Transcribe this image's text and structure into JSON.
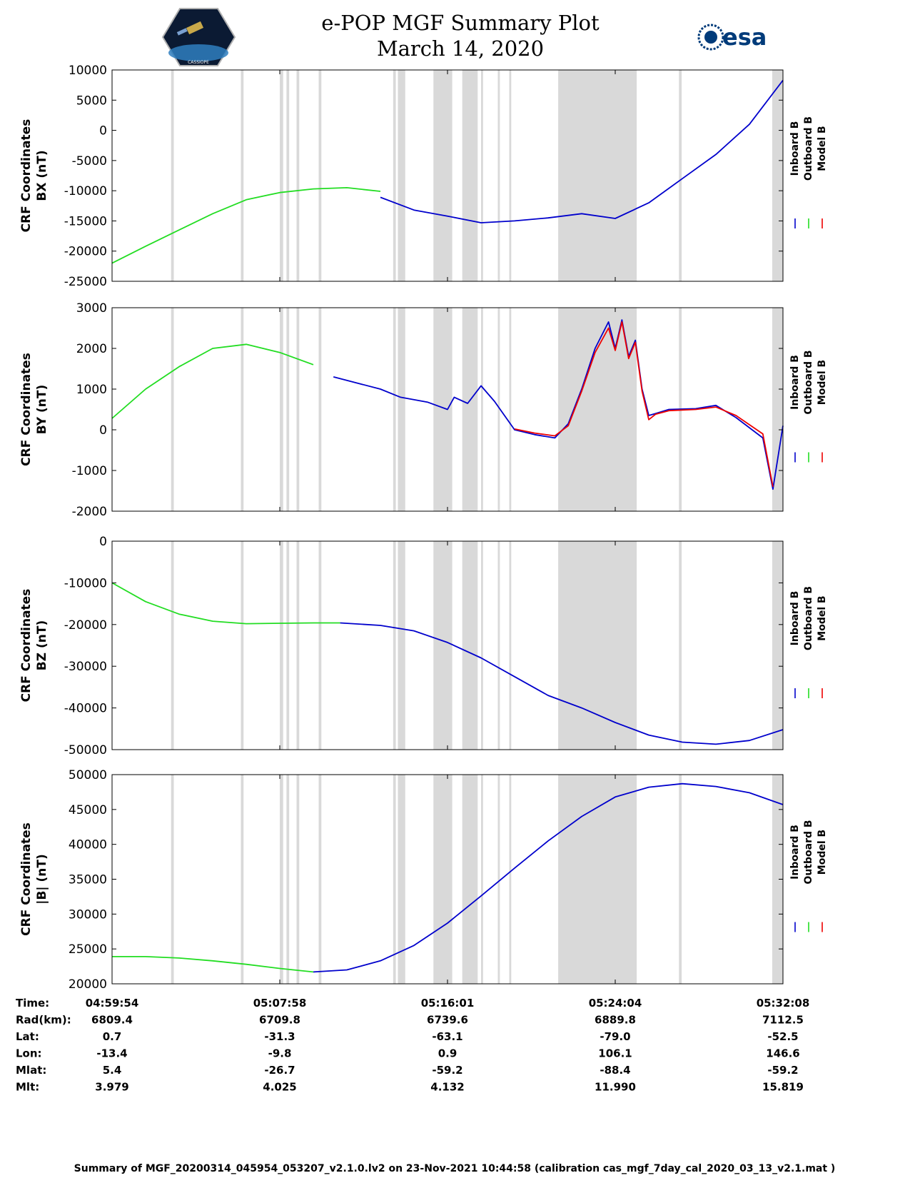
{
  "header": {
    "title_line1": "e-POP MGF Summary Plot",
    "title_line2": "March 14, 2020",
    "logo_left_text": "CASSIOPE",
    "logo_right_text": "esa"
  },
  "colors": {
    "inboard": "#0000cc",
    "outboard": "#22dd22",
    "model": "#ee0000",
    "gap_band": "#d9d9d9"
  },
  "chart_data": [
    {
      "type": "line",
      "id": "bx",
      "ylabel_line1": "CRF Coordinates",
      "ylabel_line2": "BX (nT)",
      "ylim": [
        -25000,
        10000
      ],
      "yticks": [
        10000,
        5000,
        0,
        -5000,
        -10000,
        -15000,
        -20000,
        -25000
      ],
      "legend": [
        "Inboard B",
        "Outboard B",
        "Model B"
      ],
      "series": [
        {
          "name": "Outboard B",
          "x": [
            0,
            0.05,
            0.1,
            0.15,
            0.2,
            0.25,
            0.3,
            0.35,
            0.4
          ],
          "values": [
            -22000,
            -19200,
            -16500,
            -13800,
            -11500,
            -10300,
            -9700,
            -9500,
            -10100
          ]
        },
        {
          "name": "Inboard B",
          "x": [
            0.4,
            0.45,
            0.5,
            0.55,
            0.6,
            0.65,
            0.7,
            0.75,
            0.8,
            0.85,
            0.9,
            0.95,
            1.0
          ],
          "values": [
            -11100,
            -13200,
            -14200,
            -15300,
            -15000,
            -14500,
            -13800,
            -14600,
            -12000,
            -8000,
            -4000,
            1000,
            8300
          ]
        }
      ]
    },
    {
      "type": "line",
      "id": "by",
      "ylabel_line1": "CRF Coordinates",
      "ylabel_line2": "BY (nT)",
      "ylim": [
        -2000,
        3000
      ],
      "yticks": [
        3000,
        2000,
        1000,
        0,
        -1000,
        -2000
      ],
      "legend": [
        "Inboard B",
        "Outboard B",
        "Model B"
      ],
      "series": [
        {
          "name": "Outboard B",
          "x": [
            0,
            0.05,
            0.1,
            0.15,
            0.2,
            0.25,
            0.3
          ],
          "values": [
            280,
            1000,
            1550,
            2000,
            2100,
            1900,
            1600
          ]
        },
        {
          "name": "Inboard B",
          "x": [
            0.33,
            0.4,
            0.43,
            0.47,
            0.5,
            0.51,
            0.53,
            0.55,
            0.57,
            0.6,
            0.63,
            0.66,
            0.68,
            0.7,
            0.72,
            0.74,
            0.75,
            0.76,
            0.77,
            0.78,
            0.79,
            0.8,
            0.81,
            0.83,
            0.87,
            0.9,
            0.93,
            0.97,
            0.985,
            1.0
          ],
          "values": [
            1300,
            1000,
            800,
            680,
            500,
            800,
            650,
            1080,
            700,
            0,
            -120,
            -200,
            150,
            1000,
            2000,
            2650,
            2000,
            2700,
            1800,
            2200,
            1000,
            350,
            400,
            500,
            520,
            600,
            300,
            -200,
            -1460,
            100
          ]
        },
        {
          "name": "Model B",
          "x": [
            0.6,
            0.63,
            0.66,
            0.68,
            0.7,
            0.72,
            0.74,
            0.75,
            0.76,
            0.77,
            0.78,
            0.79,
            0.8,
            0.81,
            0.83,
            0.87,
            0.9,
            0.93,
            0.97,
            0.985
          ],
          "values": [
            20,
            -80,
            -150,
            100,
            950,
            1900,
            2500,
            1950,
            2650,
            1750,
            2150,
            950,
            250,
            380,
            470,
            500,
            560,
            350,
            -100,
            -1400
          ]
        }
      ]
    },
    {
      "type": "line",
      "id": "bz",
      "ylabel_line1": "CRF Coordinates",
      "ylabel_line2": "BZ (nT)",
      "ylim": [
        -50000,
        0
      ],
      "yticks": [
        0,
        -10000,
        -20000,
        -30000,
        -40000,
        -50000
      ],
      "legend": [
        "Inboard B",
        "Outboard B",
        "Model B"
      ],
      "series": [
        {
          "name": "Outboard B",
          "x": [
            0,
            0.05,
            0.1,
            0.15,
            0.2,
            0.25,
            0.3,
            0.34
          ],
          "values": [
            -10000,
            -14500,
            -17500,
            -19200,
            -19800,
            -19700,
            -19600,
            -19600
          ]
        },
        {
          "name": "Inboard B",
          "x": [
            0.34,
            0.4,
            0.45,
            0.5,
            0.55,
            0.6,
            0.65,
            0.7,
            0.75,
            0.8,
            0.85,
            0.9,
            0.95,
            1.0
          ],
          "values": [
            -19600,
            -20200,
            -21500,
            -24300,
            -28000,
            -32500,
            -37000,
            -40000,
            -43500,
            -46500,
            -48200,
            -48700,
            -47800,
            -45200
          ]
        }
      ]
    },
    {
      "type": "line",
      "id": "bmag",
      "ylabel_line1": "CRF Coordinates",
      "ylabel_line2": "|B| (nT)",
      "ylim": [
        20000,
        50000
      ],
      "yticks": [
        50000,
        45000,
        40000,
        35000,
        30000,
        25000,
        20000
      ],
      "legend": [
        "Inboard B",
        "Outboard B",
        "Model B"
      ],
      "series": [
        {
          "name": "Outboard B",
          "x": [
            0,
            0.05,
            0.1,
            0.15,
            0.2,
            0.25,
            0.3
          ],
          "values": [
            23900,
            23900,
            23700,
            23300,
            22800,
            22200,
            21700
          ]
        },
        {
          "name": "Inboard B",
          "x": [
            0.3,
            0.35,
            0.4,
            0.45,
            0.5,
            0.55,
            0.6,
            0.65,
            0.7,
            0.75,
            0.8,
            0.85,
            0.9,
            0.95,
            1.0
          ],
          "values": [
            21700,
            22000,
            23300,
            25500,
            28700,
            32600,
            36600,
            40500,
            44000,
            46800,
            48200,
            48700,
            48300,
            47400,
            45700
          ]
        }
      ]
    }
  ],
  "gap_bands": [
    [
      0.088,
      0.092
    ],
    [
      0.192,
      0.196
    ],
    [
      0.25,
      0.255
    ],
    [
      0.26,
      0.264
    ],
    [
      0.275,
      0.279
    ],
    [
      0.308,
      0.312
    ],
    [
      0.419,
      0.423
    ],
    [
      0.426,
      0.437
    ],
    [
      0.479,
      0.507
    ],
    [
      0.522,
      0.545
    ],
    [
      0.55,
      0.553
    ],
    [
      0.575,
      0.578
    ],
    [
      0.592,
      0.595
    ],
    [
      0.665,
      0.782
    ],
    [
      0.845,
      0.849
    ],
    [
      0.984,
      1.0
    ]
  ],
  "x_axis": {
    "ticks": [
      0,
      0.25,
      0.5,
      0.75,
      1.0
    ]
  },
  "ephemeris": {
    "rows": [
      {
        "label": "Time:",
        "values": [
          "04:59:54",
          "05:07:58",
          "05:16:01",
          "05:24:04",
          "05:32:08"
        ]
      },
      {
        "label": "Rad(km):",
        "values": [
          "6809.4",
          "6709.8",
          "6739.6",
          "6889.8",
          "7112.5"
        ]
      },
      {
        "label": "Lat:",
        "values": [
          "0.7",
          "-31.3",
          "-63.1",
          "-79.0",
          "-52.5"
        ]
      },
      {
        "label": "Lon:",
        "values": [
          "-13.4",
          "-9.8",
          "0.9",
          "106.1",
          "146.6"
        ]
      },
      {
        "label": "Mlat:",
        "values": [
          "5.4",
          "-26.7",
          "-59.2",
          "-88.4",
          "-59.2"
        ]
      },
      {
        "label": "Mlt:",
        "values": [
          "3.979",
          "4.025",
          "4.132",
          "11.990",
          "15.819"
        ]
      }
    ]
  },
  "footer": {
    "summary": "Summary of MGF_20200314_045954_053207_v2.1.0.lv2 on 23-Nov-2021 10:44:58 (calibration cas_mgf_7day_cal_2020_03_13_v2.1.mat )"
  }
}
